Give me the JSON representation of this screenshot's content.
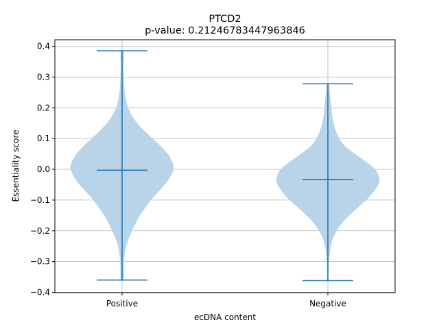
{
  "chart_data": {
    "type": "violin",
    "title": "PTCD2",
    "subtitle": "p-value: 0.21246783447963846",
    "xlabel": "ecDNA content",
    "ylabel": "Essentiality score",
    "categories": [
      "Positive",
      "Negative"
    ],
    "ylim": [
      -0.4,
      0.42
    ],
    "yticks": [
      -0.4,
      -0.3,
      -0.2,
      -0.1,
      0.0,
      0.1,
      0.2,
      0.3,
      0.4
    ],
    "ytick_labels": [
      "−0.4",
      "−0.3",
      "−0.2",
      "−0.1",
      "0.0",
      "0.1",
      "0.2",
      "0.3",
      "0.4"
    ],
    "grid": true,
    "series": [
      {
        "category": "Positive",
        "min": -0.36,
        "max": 0.385,
        "median": -0.003,
        "density": [
          [
            -0.36,
            0.01
          ],
          [
            -0.33,
            0.012
          ],
          [
            -0.3,
            0.014
          ],
          [
            -0.27,
            0.02
          ],
          [
            -0.24,
            0.035
          ],
          [
            -0.21,
            0.06
          ],
          [
            -0.18,
            0.09
          ],
          [
            -0.15,
            0.125
          ],
          [
            -0.12,
            0.17
          ],
          [
            -0.09,
            0.22
          ],
          [
            -0.06,
            0.28
          ],
          [
            -0.03,
            0.33
          ],
          [
            0.0,
            0.36
          ],
          [
            0.02,
            0.355
          ],
          [
            0.05,
            0.32
          ],
          [
            0.08,
            0.26
          ],
          [
            0.11,
            0.19
          ],
          [
            0.14,
            0.125
          ],
          [
            0.17,
            0.075
          ],
          [
            0.2,
            0.042
          ],
          [
            0.23,
            0.025
          ],
          [
            0.26,
            0.016
          ],
          [
            0.3,
            0.012
          ],
          [
            0.34,
            0.01
          ],
          [
            0.37,
            0.012
          ],
          [
            0.385,
            0.006
          ]
        ]
      },
      {
        "category": "Negative",
        "min": -0.362,
        "max": 0.278,
        "median": -0.033,
        "density": [
          [
            -0.362,
            0.004
          ],
          [
            -0.34,
            0.005
          ],
          [
            -0.3,
            0.008
          ],
          [
            -0.27,
            0.014
          ],
          [
            -0.24,
            0.025
          ],
          [
            -0.21,
            0.05
          ],
          [
            -0.18,
            0.09
          ],
          [
            -0.15,
            0.15
          ],
          [
            -0.12,
            0.22
          ],
          [
            -0.09,
            0.29
          ],
          [
            -0.06,
            0.34
          ],
          [
            -0.04,
            0.36
          ],
          [
            -0.02,
            0.355
          ],
          [
            0.0,
            0.33
          ],
          [
            0.02,
            0.28
          ],
          [
            0.05,
            0.19
          ],
          [
            0.08,
            0.11
          ],
          [
            0.11,
            0.07
          ],
          [
            0.14,
            0.045
          ],
          [
            0.17,
            0.032
          ],
          [
            0.2,
            0.024
          ],
          [
            0.23,
            0.018
          ],
          [
            0.26,
            0.012
          ],
          [
            0.278,
            0.008
          ]
        ]
      }
    ],
    "colors": {
      "body": "#b9d4e8",
      "lines": "#1f77b4",
      "grid": "#b0b0b0",
      "axes": "#000000"
    }
  }
}
